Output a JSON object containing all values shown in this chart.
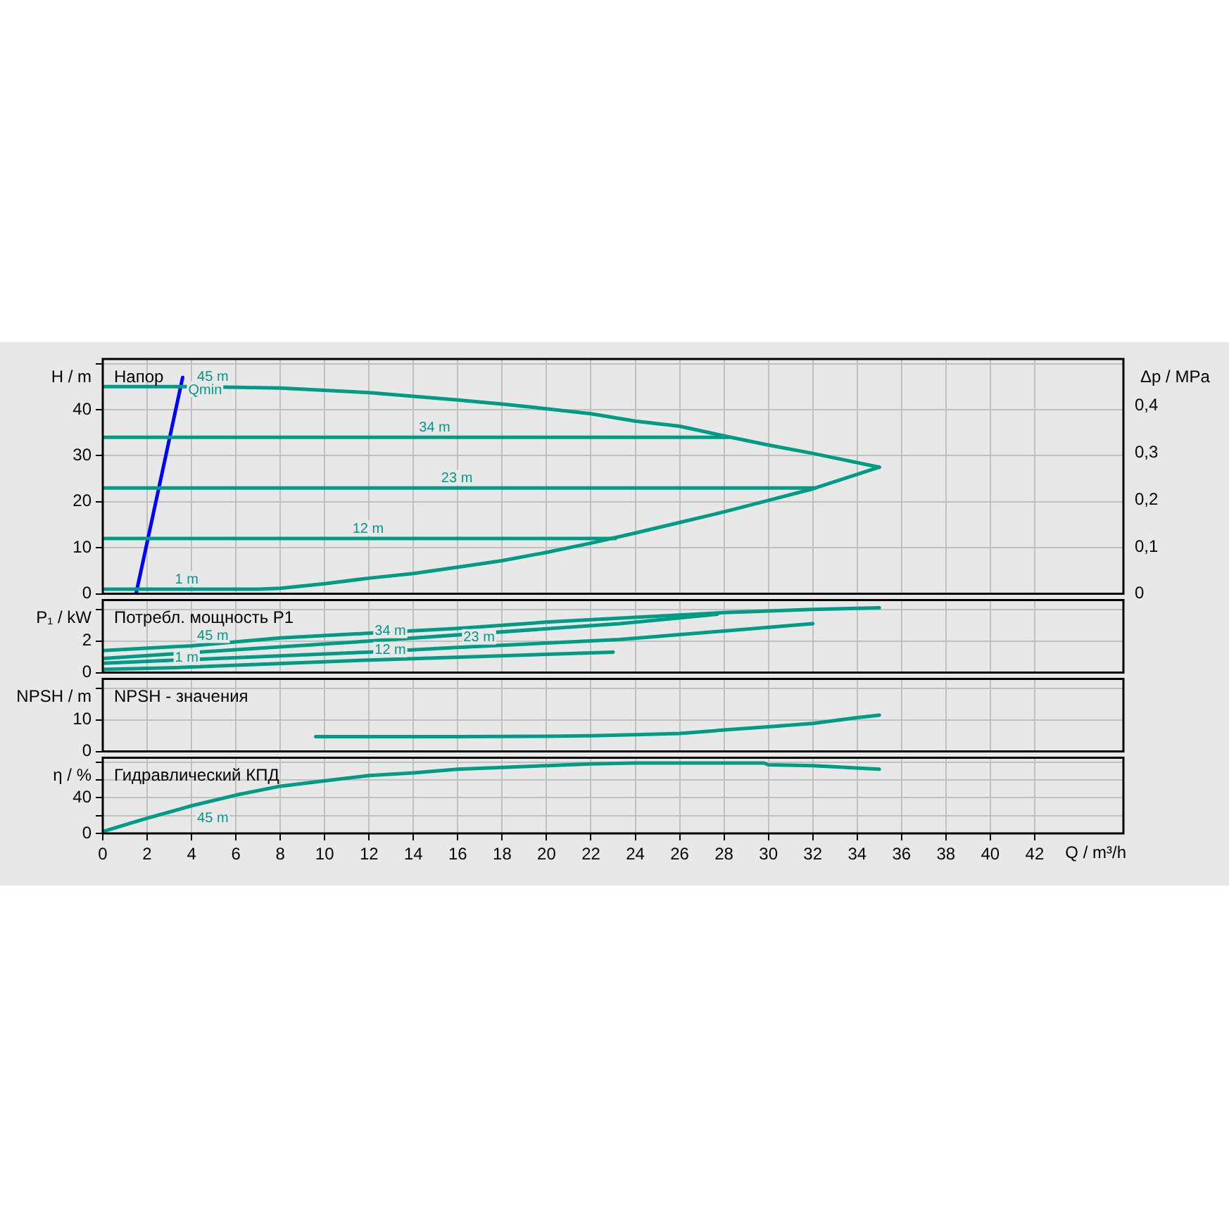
{
  "chart_data": [
    {
      "type": "line",
      "title": "Напор",
      "ylabel": "H / m",
      "y2label": "Δp / MPa",
      "xlim": [
        0,
        46
      ],
      "xticks": [
        0,
        2,
        4,
        6,
        8,
        10,
        12,
        14,
        16,
        18,
        20,
        22,
        24,
        26,
        28,
        30,
        32,
        34,
        36,
        38,
        40,
        42
      ],
      "ylim": [
        0,
        51
      ],
      "yticks": [
        0,
        10,
        20,
        30,
        40,
        {
          "value": 50,
          "label": null
        }
      ],
      "y2lim": [
        0,
        0.5
      ],
      "y2ticks": [
        {
          "value": 0,
          "label": "0"
        },
        {
          "value": 0.1,
          "label": "0,1"
        },
        {
          "value": 0.2,
          "label": "0,2"
        },
        {
          "value": 0.3,
          "label": "0,3"
        },
        {
          "value": 0.4,
          "label": "0,4"
        }
      ],
      "grid": true,
      "legend": false,
      "tick_labels": "y",
      "marker": "none",
      "line_style": "solid",
      "series": [
        {
          "color": "#009b85",
          "x": [
            0,
            4,
            8,
            10,
            12,
            14,
            16,
            18,
            20,
            22,
            24,
            26,
            28,
            30,
            32,
            35
          ],
          "values": [
            45,
            45,
            44.7,
            44.2,
            43.7,
            42.9,
            42.1,
            41.2,
            40.2,
            39.1,
            37.5,
            36.4,
            34.3,
            32.3,
            30.5,
            27.5
          ]
        },
        {
          "color": "#009b85",
          "x": [
            0,
            14,
            28.2
          ],
          "values": [
            34,
            34,
            34
          ]
        },
        {
          "color": "#009b85",
          "x": [
            0,
            15,
            32.1
          ],
          "values": [
            23,
            23,
            23
          ]
        },
        {
          "color": "#009b85",
          "x": [
            0,
            11,
            23.1
          ],
          "values": [
            12,
            12,
            12
          ]
        },
        {
          "color": "#009b85",
          "x": [
            0,
            2,
            3,
            4,
            6,
            7,
            8,
            10,
            12,
            14,
            16,
            18,
            20,
            22,
            24,
            26,
            28,
            30,
            32,
            35
          ],
          "values": [
            1,
            1,
            1,
            1,
            1,
            1,
            1.2,
            2.2,
            3.4,
            4.4,
            5.8,
            7.2,
            9,
            11,
            13.2,
            15.5,
            17.8,
            20.3,
            22.8,
            27.5
          ]
        },
        {
          "color": "#0000ff",
          "x": [
            1.5,
            3.6
          ],
          "values": [
            0,
            47
          ]
        }
      ],
      "annotations": [
        {
          "text": "45 m",
          "x": 4,
          "y": 45
        },
        {
          "text": "Qmin",
          "x": 3.6,
          "y": 47
        },
        {
          "text": "34 m",
          "x": 14,
          "y": 34
        },
        {
          "text": "23 m",
          "x": 15,
          "y": 23
        },
        {
          "text": "12 m",
          "x": 11,
          "y": 12
        },
        {
          "text": "1 m",
          "x": 3,
          "y": 1
        }
      ]
    },
    {
      "type": "line",
      "title": "Потребл. мощность P1",
      "ylabel": "P₁ / kW",
      "xlim": [
        0,
        46
      ],
      "xticks": [
        0,
        2,
        4,
        6,
        8,
        10,
        12,
        14,
        16,
        18,
        20,
        22,
        24,
        26,
        28,
        30,
        32,
        34,
        36,
        38,
        40,
        42
      ],
      "ylim": [
        0,
        4.6
      ],
      "yticks": [
        0,
        2,
        {
          "value": 4,
          "label": null
        }
      ],
      "grid": true,
      "legend": false,
      "tick_labels": "y",
      "marker": "none",
      "line_style": "solid",
      "series": [
        {
          "color": "#009b85",
          "x": [
            0,
            4,
            8,
            12,
            16,
            20,
            24,
            28,
            32,
            35
          ],
          "values": [
            1.4,
            1.7,
            2.2,
            2.5,
            2.8,
            3.2,
            3.5,
            3.8,
            4.0,
            4.1
          ]
        },
        {
          "color": "#009b85",
          "x": [
            0,
            12,
            23.3,
            27.7
          ],
          "values": [
            0.9,
            2.0,
            3.1,
            3.7
          ]
        },
        {
          "color": "#009b85",
          "x": [
            0,
            12,
            16,
            23.3,
            32
          ],
          "values": [
            0.6,
            1.3,
            1.6,
            2.1,
            3.1
          ]
        },
        {
          "color": "#009b85",
          "x": [
            0,
            3,
            12,
            23
          ],
          "values": [
            0.2,
            0.3,
            0.8,
            1.3
          ]
        }
      ],
      "annotations": [
        {
          "text": "45 m",
          "x": 4,
          "y": 1.7
        },
        {
          "text": "34 m",
          "x": 12,
          "y": 2.0
        },
        {
          "text": "23 m",
          "x": 16,
          "y": 1.6
        },
        {
          "text": "12 m",
          "x": 12,
          "y": 0.8
        },
        {
          "text": "1 m",
          "x": 3,
          "y": 0.3
        }
      ]
    },
    {
      "type": "line",
      "title": "NPSH - значения",
      "ylabel": "NPSH / m",
      "xlim": [
        0,
        46
      ],
      "xticks": [
        0,
        2,
        4,
        6,
        8,
        10,
        12,
        14,
        16,
        18,
        20,
        22,
        24,
        26,
        28,
        30,
        32,
        34,
        36,
        38,
        40,
        42
      ],
      "ylim": [
        0,
        23
      ],
      "yticks": [
        0,
        10,
        {
          "value": 20,
          "label": null
        }
      ],
      "grid": true,
      "legend": false,
      "tick_labels": "y",
      "marker": "none",
      "line_style": "solid",
      "series": [
        {
          "color": "#009b85",
          "x": [
            9.6,
            12,
            16,
            20,
            22,
            24,
            26,
            28,
            30,
            32,
            34,
            35
          ],
          "values": [
            4.7,
            4.7,
            4.7,
            4.8,
            5.0,
            5.3,
            5.7,
            6.8,
            7.8,
            8.9,
            10.7,
            11.5
          ]
        }
      ]
    },
    {
      "type": "line",
      "title": "Гидравлический КПД",
      "ylabel": "η / %",
      "xlabel": "Q / m³/h",
      "xlim": [
        0,
        46
      ],
      "xticks": [
        0,
        2,
        4,
        6,
        8,
        10,
        12,
        14,
        16,
        18,
        20,
        22,
        24,
        26,
        28,
        30,
        32,
        34,
        36,
        38,
        40,
        42
      ],
      "ylim": [
        0,
        85
      ],
      "yticks": [
        0,
        {
          "value": 20,
          "label": null
        },
        40,
        {
          "value": 60,
          "label": null
        },
        {
          "value": 80,
          "label": null
        }
      ],
      "grid": true,
      "legend": false,
      "marker": "none",
      "line_style": "solid",
      "series": [
        {
          "color": "#009b85",
          "x": [
            0,
            2,
            4,
            6,
            8,
            10,
            12,
            14,
            16,
            18,
            20,
            22,
            24,
            26,
            28,
            29.8,
            30,
            32,
            33.5,
            35
          ],
          "values": [
            2,
            17,
            31,
            43,
            53,
            59,
            65,
            68,
            72,
            74,
            76,
            78,
            79,
            79,
            79,
            79,
            77,
            76,
            74,
            72
          ]
        }
      ],
      "annotations": [
        {
          "text": "45 m",
          "x": 4,
          "y": 31
        }
      ]
    }
  ]
}
